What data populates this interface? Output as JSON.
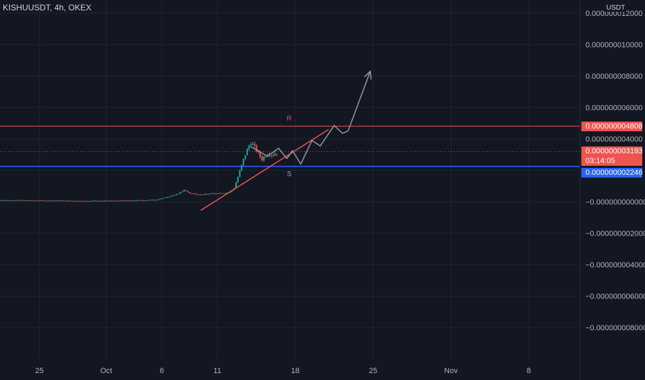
{
  "header": {
    "symbol": "KISHUUSDT, 4h, OKEX"
  },
  "axis": {
    "unit": "USDT"
  },
  "colors": {
    "bg": "#131722",
    "grid": "#1f2430",
    "candle_up": "#26a69a",
    "candle_down": "#ef5350",
    "resistance": "#f05350",
    "support": "#2962ff",
    "trend": "#f05350",
    "projection": "#9598a1",
    "price": "#f05350"
  },
  "chart_data": {
    "type": "candlestick",
    "title": "KISHUUSDT, 4h, OKEX",
    "ylabel": "USDT",
    "ylim": [
      -9e-09,
      1.2e-08
    ],
    "y_ticks": [
      {
        "value": 1.2e-08,
        "label": "0.000000012000"
      },
      {
        "value": 1e-08,
        "label": "0.000000010000"
      },
      {
        "value": 8e-09,
        "label": "0.000000008000"
      },
      {
        "value": 6e-09,
        "label": "0.000000006000"
      },
      {
        "value": 4e-09,
        "label": "0.000000004000"
      },
      {
        "value": 2e-09,
        "label": "0.000000002000"
      },
      {
        "value": 0,
        "label": "−0.000000000000"
      },
      {
        "value": -2e-09,
        "label": "−0.000000002000"
      },
      {
        "value": -4e-09,
        "label": "−0.000000004000"
      },
      {
        "value": -6e-09,
        "label": "−0.000000006000"
      },
      {
        "value": -8e-09,
        "label": "−0.000000008000"
      }
    ],
    "x_ticks": [
      {
        "date": "2021-09-25",
        "label": "25"
      },
      {
        "date": "2021-10-01",
        "label": "Oct"
      },
      {
        "date": "2021-10-06",
        "label": "6"
      },
      {
        "date": "2021-10-11",
        "label": "11"
      },
      {
        "date": "2021-10-18",
        "label": "18"
      },
      {
        "date": "2021-10-25",
        "label": "25"
      },
      {
        "date": "2021-11-01",
        "label": "Nov"
      },
      {
        "date": "2021-11-08",
        "label": "8"
      }
    ],
    "levels": {
      "resistance": {
        "value": 4.808e-09,
        "label": "R",
        "tag": "0.000000004808"
      },
      "support": {
        "value": 2.246e-09,
        "label": "S",
        "tag": "0.000000002246"
      },
      "current": {
        "value": 3.193e-09,
        "tag": "0.000000003193",
        "countdown": "03:14:05"
      }
    },
    "trendline": [
      {
        "date": "2021-10-09 12:00",
        "value": -5.5e-10
      },
      {
        "date": "2021-10-21 00:00",
        "value": 4.6e-09
      }
    ],
    "projection": [
      {
        "date": "2021-10-14 00:00",
        "value": 3.5e-09
      },
      {
        "date": "2021-10-15 12:00",
        "value": 2.9e-09
      },
      {
        "date": "2021-10-16 12:00",
        "value": 3.4e-09
      },
      {
        "date": "2021-10-17 06:00",
        "value": 2.75e-09
      },
      {
        "date": "2021-10-17 18:00",
        "value": 3.25e-09
      },
      {
        "date": "2021-10-18 12:00",
        "value": 2.4e-09
      },
      {
        "date": "2021-10-19 12:00",
        "value": 3.9e-09
      },
      {
        "date": "2021-10-20 06:00",
        "value": 3.55e-09
      },
      {
        "date": "2021-10-21 12:00",
        "value": 4.85e-09
      },
      {
        "date": "2021-10-22 06:00",
        "value": 4.35e-09
      },
      {
        "date": "2021-10-22 18:00",
        "value": 4.5e-09
      },
      {
        "date": "2021-10-24 18:00",
        "value": 8.3e-09
      }
    ],
    "series": [
      {
        "name": "price_path",
        "points": [
          {
            "date": "2021-09-21 00:00",
            "value": 1e-10
          },
          {
            "date": "2021-09-25 00:00",
            "value": 8e-11
          },
          {
            "date": "2021-09-29 00:00",
            "value": 5e-11
          },
          {
            "date": "2021-10-02 00:00",
            "value": 6e-11
          },
          {
            "date": "2021-10-05 12:00",
            "value": 1.2e-10
          },
          {
            "date": "2021-10-06 12:00",
            "value": 3e-10
          },
          {
            "date": "2021-10-07 12:00",
            "value": 5e-10
          },
          {
            "date": "2021-10-08 00:00",
            "value": 7.5e-10
          },
          {
            "date": "2021-10-08 12:00",
            "value": 5.5e-10
          },
          {
            "date": "2021-10-09 12:00",
            "value": 4.5e-10
          },
          {
            "date": "2021-10-10 12:00",
            "value": 5.2e-10
          },
          {
            "date": "2021-10-12 00:00",
            "value": 5.8e-10
          },
          {
            "date": "2021-10-12 12:00",
            "value": 8.5e-10
          },
          {
            "date": "2021-10-13 00:00",
            "value": 1.9e-09
          },
          {
            "date": "2021-10-13 12:00",
            "value": 3e-09
          },
          {
            "date": "2021-10-14 00:00",
            "value": 3.8e-09
          },
          {
            "date": "2021-10-14 12:00",
            "value": 3.3e-09
          },
          {
            "date": "2021-10-15 00:00",
            "value": 2.7e-09
          },
          {
            "date": "2021-10-15 12:00",
            "value": 3.1e-09
          },
          {
            "date": "2021-10-16 00:00",
            "value": 3e-09
          },
          {
            "date": "2021-10-16 12:00",
            "value": 3.19e-09
          }
        ]
      }
    ],
    "grid": true
  }
}
